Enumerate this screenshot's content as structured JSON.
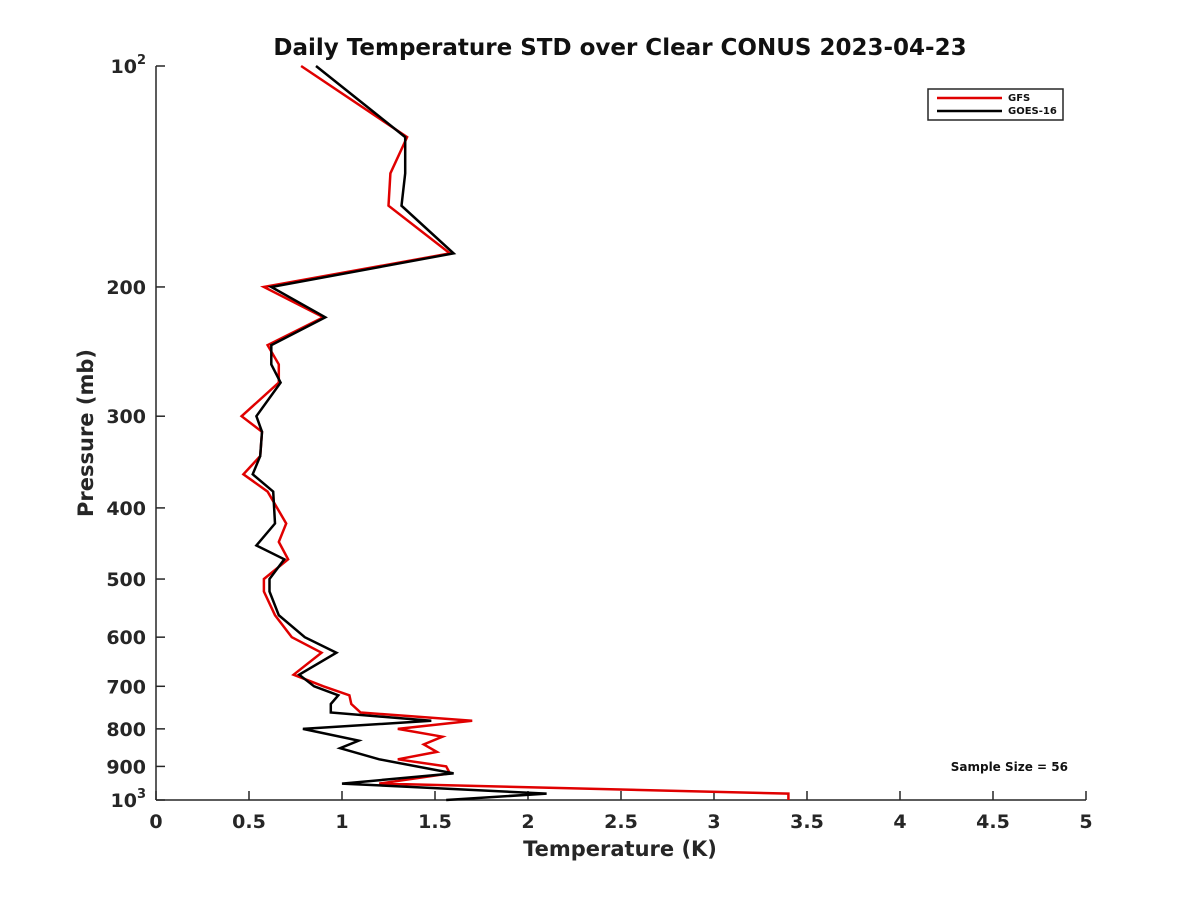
{
  "chart_data": {
    "type": "line",
    "title": "Daily Temperature STD over Clear CONUS 2023-04-23",
    "xlabel": "Temperature (K)",
    "ylabel": "Pressure (mb)",
    "xlim": [
      0,
      5
    ],
    "ylim": [
      100,
      1000
    ],
    "y_scale": "log",
    "y_reversed": true,
    "grid": false,
    "legend_position": "top-right",
    "x_ticks": [
      0,
      0.5,
      1,
      1.5,
      2,
      2.5,
      3,
      3.5,
      4,
      4.5,
      5
    ],
    "x_tick_labels": [
      "0",
      "0.5",
      "1",
      "1.5",
      "2",
      "2.5",
      "3",
      "3.5",
      "4",
      "4.5",
      "5"
    ],
    "y_ticks": [
      {
        "value": 100,
        "base": "10",
        "exp": "2"
      },
      {
        "value": 200,
        "label": "200"
      },
      {
        "value": 300,
        "label": "300"
      },
      {
        "value": 400,
        "label": "400"
      },
      {
        "value": 500,
        "label": "500"
      },
      {
        "value": 600,
        "label": "600"
      },
      {
        "value": 700,
        "label": "700"
      },
      {
        "value": 800,
        "label": "800"
      },
      {
        "value": 900,
        "label": "900"
      },
      {
        "value": 1000,
        "base": "10",
        "exp": "3"
      }
    ],
    "annotation": "Sample Size = 56",
    "series": [
      {
        "name": "GFS",
        "color": "#e00000",
        "points": [
          [
            0.78,
            100
          ],
          [
            1.35,
            125
          ],
          [
            1.26,
            140
          ],
          [
            1.25,
            155
          ],
          [
            1.58,
            180
          ],
          [
            0.58,
            200
          ],
          [
            0.9,
            220
          ],
          [
            0.6,
            240
          ],
          [
            0.66,
            255
          ],
          [
            0.66,
            270
          ],
          [
            0.46,
            300
          ],
          [
            0.57,
            315
          ],
          [
            0.56,
            340
          ],
          [
            0.47,
            360
          ],
          [
            0.6,
            380
          ],
          [
            0.7,
            420
          ],
          [
            0.66,
            445
          ],
          [
            0.71,
            470
          ],
          [
            0.58,
            500
          ],
          [
            0.58,
            520
          ],
          [
            0.64,
            560
          ],
          [
            0.73,
            600
          ],
          [
            0.89,
            630
          ],
          [
            0.74,
            675
          ],
          [
            0.9,
            700
          ],
          [
            1.04,
            720
          ],
          [
            1.05,
            740
          ],
          [
            1.1,
            760
          ],
          [
            1.7,
            780
          ],
          [
            1.3,
            800
          ],
          [
            1.54,
            820
          ],
          [
            1.44,
            840
          ],
          [
            1.51,
            860
          ],
          [
            1.3,
            880
          ],
          [
            1.56,
            900
          ],
          [
            1.58,
            920
          ],
          [
            1.2,
            950
          ],
          [
            3.4,
            980
          ],
          [
            3.4,
            1000
          ]
        ]
      },
      {
        "name": "GOES-16",
        "color": "#000000",
        "points": [
          [
            0.86,
            100
          ],
          [
            1.34,
            125
          ],
          [
            1.34,
            140
          ],
          [
            1.32,
            155
          ],
          [
            1.6,
            180
          ],
          [
            0.62,
            200
          ],
          [
            0.91,
            220
          ],
          [
            0.62,
            240
          ],
          [
            0.62,
            255
          ],
          [
            0.67,
            270
          ],
          [
            0.54,
            300
          ],
          [
            0.57,
            315
          ],
          [
            0.56,
            340
          ],
          [
            0.52,
            360
          ],
          [
            0.63,
            380
          ],
          [
            0.64,
            420
          ],
          [
            0.54,
            450
          ],
          [
            0.69,
            470
          ],
          [
            0.61,
            500
          ],
          [
            0.61,
            520
          ],
          [
            0.66,
            560
          ],
          [
            0.8,
            600
          ],
          [
            0.97,
            630
          ],
          [
            0.77,
            675
          ],
          [
            0.85,
            700
          ],
          [
            0.98,
            720
          ],
          [
            0.94,
            740
          ],
          [
            0.94,
            760
          ],
          [
            1.48,
            780
          ],
          [
            0.79,
            800
          ],
          [
            1.09,
            830
          ],
          [
            0.99,
            850
          ],
          [
            1.2,
            880
          ],
          [
            1.6,
            920
          ],
          [
            1.0,
            950
          ],
          [
            2.1,
            980
          ],
          [
            1.56,
            1000
          ]
        ]
      }
    ]
  }
}
